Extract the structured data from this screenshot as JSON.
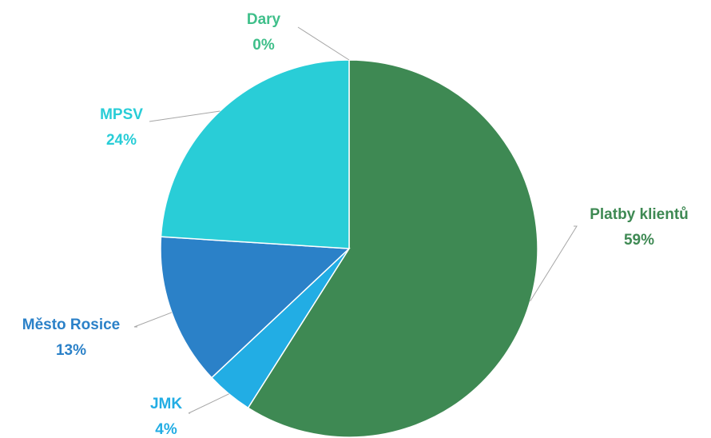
{
  "chart_data": {
    "type": "pie",
    "categories": [
      "Platby klientů",
      "JMK",
      "Město Rosice",
      "MPSV",
      "Dary"
    ],
    "values": [
      59,
      4,
      13,
      24,
      0
    ],
    "value_labels": [
      "59%",
      "4%",
      "13%",
      "24%",
      "0%"
    ],
    "colors": [
      "#3e8953",
      "#22ade4",
      "#2b81c8",
      "#29cdd7",
      "#ffffff"
    ],
    "label_colors": [
      "#3e8953",
      "#22ade4",
      "#2b81c8",
      "#29cdd7",
      "#3fbf8a"
    ],
    "start_angle_deg": 0,
    "direction": "clockwise",
    "labels_outside_with_leader_lines": true,
    "legend": "none"
  }
}
